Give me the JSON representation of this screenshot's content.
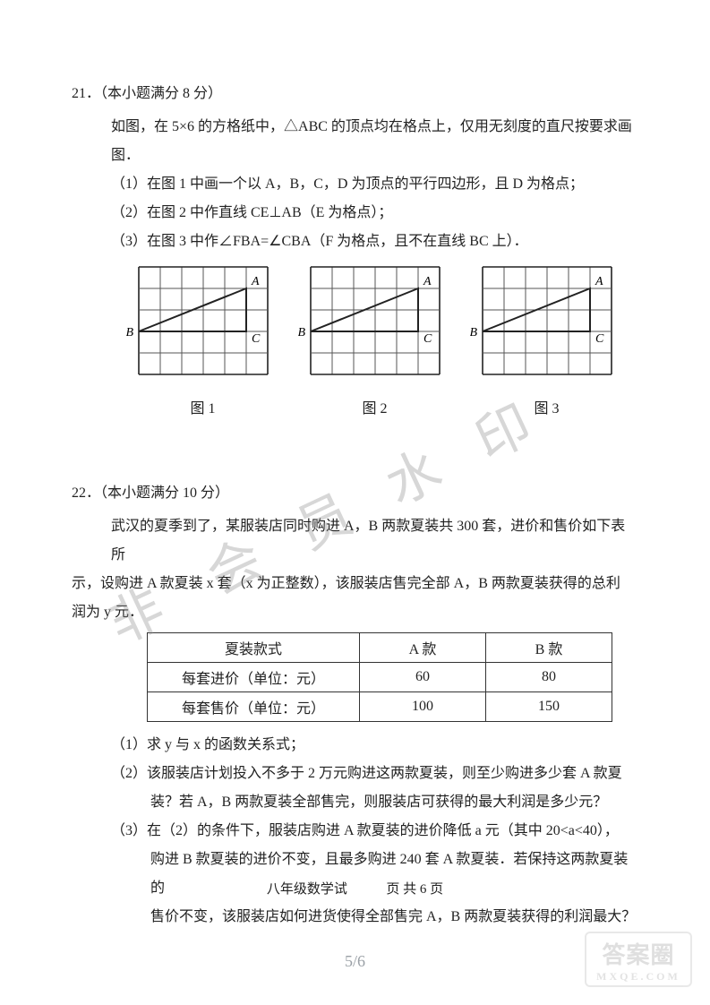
{
  "q21": {
    "header": "21．（本小题满分 8 分）",
    "intro": "如图，在 5×6 的方格纸中，△ABC 的顶点均在格点上，仅用无刻度的直尺按要求画图．",
    "p1": "（1）在图 1 中画一个以 A，B，C，D 为顶点的平行四边形，且 D 为格点；",
    "p2": "（2）在图 2 中作直线 CE⊥AB（E 为格点）；",
    "p3": "（3）在图 3 中作∠FBA=∠CBA（F 为格点，且不在直线 BC 上）．",
    "fig_labels": [
      "图 1",
      "图 2",
      "图 3"
    ],
    "grid": {
      "cols": 6,
      "rows": 5,
      "cell": 24,
      "stroke_grid": "#555555",
      "stroke_outer": "#222222",
      "stroke_tri": "#222222",
      "tri_width": 2.0,
      "label_font": 14,
      "A": [
        5,
        1
      ],
      "B": [
        0,
        3
      ],
      "C": [
        5,
        3
      ],
      "A_label_pos": "ne",
      "B_label_pos": "w",
      "C_label_pos": "e"
    }
  },
  "q22": {
    "header": "22．（本小题满分 10 分）",
    "intro1": "武汉的夏季到了，某服装店同时购进 A，B 两款夏装共 300 套，进价和售价如下表所",
    "intro2": "示，设购进 A 款夏装 x 套（x 为正整数），该服装店售完全部 A，B 两款夏装获得的总利",
    "intro3": "润为 y 元．",
    "table": {
      "cols": [
        "夏装款式",
        "A 款",
        "B 款"
      ],
      "rows": [
        [
          "每套进价（单位：元）",
          "60",
          "80"
        ],
        [
          "每套售价（单位：元）",
          "100",
          "150"
        ]
      ],
      "border_color": "#333333"
    },
    "p1": "（1）求 y 与 x 的函数关系式；",
    "p2a": "（2）该服装店计划投入不多于 2 万元购进这两款夏装，则至少购进多少套 A 款夏",
    "p2b": "装？若 A，B 两款夏装全部售完，则服装店可获得的最大利润是多少元？",
    "p3a": "（3）在（2）的条件下，服装店购进 A 款夏装的进价降低 a 元（其中 20<a<40），",
    "p3b": "购进 B 款夏装的进价不变，且最多购进 240 套 A 款夏装．若保持这两款夏装的",
    "p3c": "售价不变，该服装店如何进货使得全部售完 A，B 两款夏装获得的利润最大？"
  },
  "watermarks": {
    "diag_text": "非会员水印",
    "corner_top": "答案圈",
    "corner_sub": "MXQE.COM"
  },
  "footers": {
    "f1_prefix": "八年级数学试",
    "f1_suffix": "页 共 6 页",
    "f2": "5/6"
  }
}
